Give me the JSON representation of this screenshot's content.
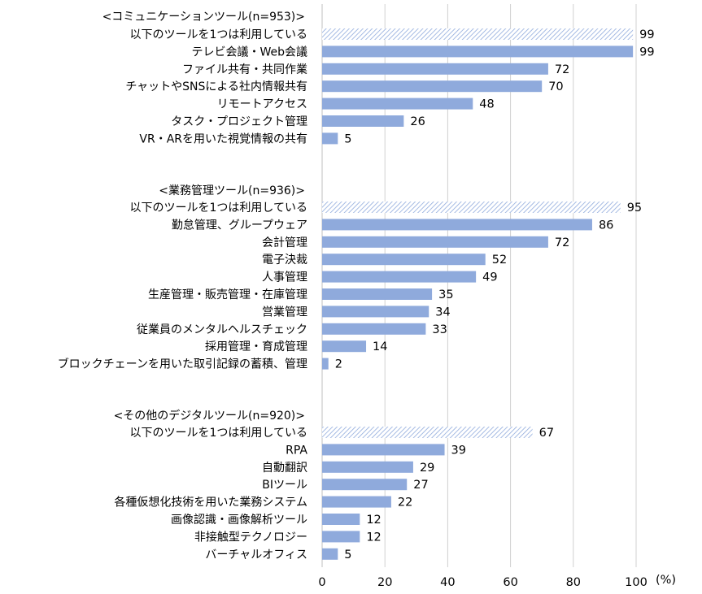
{
  "chart_data": {
    "type": "bar",
    "orientation": "horizontal",
    "xlim": [
      0,
      100
    ],
    "xticks": [
      "0",
      "20",
      "40",
      "60",
      "80",
      "100"
    ],
    "unit": "(%)",
    "colors": {
      "bar": "#8faadc",
      "hatch": "#8faadc",
      "grid": "#d0d0d0"
    },
    "groups": [
      {
        "title": "<コミュニケーションツール(n=953)>",
        "rows": [
          {
            "label": "以下のツールを1つは利用している",
            "value": 99,
            "value_label": "99",
            "hatched": true
          },
          {
            "label": "テレビ会議・Web会議",
            "value": 99,
            "value_label": "99",
            "hatched": false
          },
          {
            "label": "ファイル共有・共同作業",
            "value": 72,
            "value_label": "72",
            "hatched": false
          },
          {
            "label": "チャットやSNSによる社内情報共有",
            "value": 70,
            "value_label": "70",
            "hatched": false
          },
          {
            "label": "リモートアクセス",
            "value": 48,
            "value_label": "48",
            "hatched": false
          },
          {
            "label": "タスク・プロジェクト管理",
            "value": 26,
            "value_label": "26",
            "hatched": false
          },
          {
            "label": "VR・ARを用いた視覚情報の共有",
            "value": 5,
            "value_label": "5",
            "hatched": false
          }
        ]
      },
      {
        "title": "<業務管理ツール(n=936)>",
        "rows": [
          {
            "label": "以下のツールを1つは利用している",
            "value": 95,
            "value_label": "95",
            "hatched": true
          },
          {
            "label": "勤怠管理、グループウェア",
            "value": 86,
            "value_label": "86",
            "hatched": false
          },
          {
            "label": "会計管理",
            "value": 72,
            "value_label": "72",
            "hatched": false
          },
          {
            "label": "電子決裁",
            "value": 52,
            "value_label": "52",
            "hatched": false
          },
          {
            "label": "人事管理",
            "value": 49,
            "value_label": "49",
            "hatched": false
          },
          {
            "label": "生産管理・販売管理・在庫管理",
            "value": 35,
            "value_label": "35",
            "hatched": false
          },
          {
            "label": "営業管理",
            "value": 34,
            "value_label": "34",
            "hatched": false
          },
          {
            "label": "従業員のメンタルヘルスチェック",
            "value": 33,
            "value_label": "33",
            "hatched": false
          },
          {
            "label": "採用管理・育成管理",
            "value": 14,
            "value_label": "14",
            "hatched": false
          },
          {
            "label": "ブロックチェーンを用いた取引記録の蓄積、管理",
            "value": 2,
            "value_label": "2",
            "hatched": false
          }
        ]
      },
      {
        "title": "<その他のデジタルツール(n=920)>",
        "rows": [
          {
            "label": "以下のツールを1つは利用している",
            "value": 67,
            "value_label": "67",
            "hatched": true
          },
          {
            "label": "RPA",
            "value": 39,
            "value_label": "39",
            "hatched": false
          },
          {
            "label": "自動翻訳",
            "value": 29,
            "value_label": "29",
            "hatched": false
          },
          {
            "label": "BIツール",
            "value": 27,
            "value_label": "27",
            "hatched": false
          },
          {
            "label": "各種仮想化技術を用いた業務システム",
            "value": 22,
            "value_label": "22",
            "hatched": false
          },
          {
            "label": "画像認識・画像解析ツール",
            "value": 12,
            "value_label": "12",
            "hatched": false
          },
          {
            "label": "非接触型テクノロジー",
            "value": 12,
            "value_label": "12",
            "hatched": false
          },
          {
            "label": "バーチャルオフィス",
            "value": 5,
            "value_label": "5",
            "hatched": false
          }
        ]
      }
    ]
  }
}
